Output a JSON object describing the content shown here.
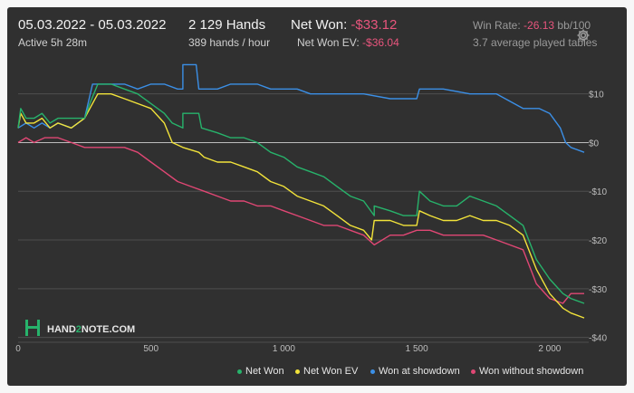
{
  "header": {
    "date_range": "05.03.2022 - 05.03.2022",
    "active": "Active 5h 28m",
    "hands": "2 129 Hands",
    "hands_per_hour": "389 hands / hour",
    "net_won_label": "Net Won:",
    "net_won_value": "-$33.12",
    "net_won_ev_label": "Net Won  EV:",
    "net_won_ev_value": "-$36.04",
    "win_rate_label": "Win Rate:",
    "win_rate_value": "-26.13",
    "win_rate_unit": "bb/100",
    "avg_tables": "3.7 average played tables",
    "gear_icon": "gear-icon"
  },
  "logo": {
    "text_a": "HAND",
    "text_b": "2",
    "text_c": "NOTE.COM"
  },
  "chart_data": {
    "type": "line",
    "xlim": [
      0,
      2130
    ],
    "ylim": [
      -41,
      17
    ],
    "x_ticks": [
      0,
      500,
      1000,
      1500,
      2000
    ],
    "x_tick_labels": [
      "0",
      "500",
      "1 000",
      "1 500",
      "2 000"
    ],
    "y_ticks": [
      10,
      0,
      -10,
      -20,
      -30,
      -40
    ],
    "y_tick_labels": [
      "$10",
      "$0",
      "-$10",
      "-$20",
      "-$30",
      "-$40"
    ],
    "grid": true,
    "legend_position": "bottom-right",
    "series": [
      {
        "name": "Net Won",
        "color": "#27b36b",
        "points": [
          [
            0,
            3
          ],
          [
            10,
            7
          ],
          [
            30,
            5
          ],
          [
            60,
            5
          ],
          [
            90,
            6
          ],
          [
            120,
            4
          ],
          [
            150,
            5
          ],
          [
            200,
            5
          ],
          [
            250,
            5
          ],
          [
            270,
            8
          ],
          [
            300,
            12
          ],
          [
            350,
            12
          ],
          [
            400,
            11
          ],
          [
            450,
            10
          ],
          [
            500,
            8
          ],
          [
            550,
            6
          ],
          [
            580,
            4
          ],
          [
            620,
            3
          ],
          [
            620,
            6
          ],
          [
            680,
            6
          ],
          [
            690,
            3
          ],
          [
            750,
            2
          ],
          [
            800,
            1
          ],
          [
            850,
            1
          ],
          [
            900,
            0
          ],
          [
            950,
            -2
          ],
          [
            1000,
            -3
          ],
          [
            1050,
            -5
          ],
          [
            1100,
            -6
          ],
          [
            1150,
            -7
          ],
          [
            1200,
            -9
          ],
          [
            1250,
            -11
          ],
          [
            1300,
            -12
          ],
          [
            1340,
            -15
          ],
          [
            1340,
            -13
          ],
          [
            1400,
            -14
          ],
          [
            1450,
            -15
          ],
          [
            1500,
            -15
          ],
          [
            1510,
            -10
          ],
          [
            1550,
            -12
          ],
          [
            1600,
            -13
          ],
          [
            1650,
            -13
          ],
          [
            1700,
            -11
          ],
          [
            1750,
            -12
          ],
          [
            1800,
            -13
          ],
          [
            1850,
            -15
          ],
          [
            1900,
            -17
          ],
          [
            1950,
            -24
          ],
          [
            2000,
            -28
          ],
          [
            2050,
            -31
          ],
          [
            2080,
            -32
          ],
          [
            2130,
            -33
          ]
        ]
      },
      {
        "name": "Net Won  EV",
        "color": "#f2e33a",
        "points": [
          [
            0,
            3
          ],
          [
            10,
            6
          ],
          [
            30,
            4
          ],
          [
            60,
            4
          ],
          [
            90,
            5
          ],
          [
            120,
            3
          ],
          [
            150,
            4
          ],
          [
            200,
            3
          ],
          [
            250,
            5
          ],
          [
            270,
            7
          ],
          [
            300,
            10
          ],
          [
            350,
            10
          ],
          [
            400,
            9
          ],
          [
            450,
            8
          ],
          [
            500,
            7
          ],
          [
            550,
            4
          ],
          [
            580,
            0
          ],
          [
            620,
            -1
          ],
          [
            680,
            -2
          ],
          [
            700,
            -3
          ],
          [
            750,
            -4
          ],
          [
            800,
            -4
          ],
          [
            850,
            -5
          ],
          [
            900,
            -6
          ],
          [
            950,
            -8
          ],
          [
            1000,
            -9
          ],
          [
            1050,
            -11
          ],
          [
            1100,
            -12
          ],
          [
            1150,
            -13
          ],
          [
            1200,
            -15
          ],
          [
            1250,
            -17
          ],
          [
            1300,
            -18
          ],
          [
            1330,
            -20
          ],
          [
            1340,
            -16
          ],
          [
            1400,
            -16
          ],
          [
            1450,
            -17
          ],
          [
            1500,
            -17
          ],
          [
            1510,
            -14
          ],
          [
            1550,
            -15
          ],
          [
            1600,
            -16
          ],
          [
            1650,
            -16
          ],
          [
            1700,
            -15
          ],
          [
            1750,
            -16
          ],
          [
            1800,
            -16
          ],
          [
            1850,
            -17
          ],
          [
            1900,
            -19
          ],
          [
            1950,
            -26
          ],
          [
            2000,
            -31
          ],
          [
            2050,
            -34
          ],
          [
            2080,
            -35
          ],
          [
            2130,
            -36
          ]
        ]
      },
      {
        "name": "Won at showdown",
        "color": "#3b8fe6",
        "points": [
          [
            0,
            3
          ],
          [
            30,
            4
          ],
          [
            60,
            3
          ],
          [
            90,
            4
          ],
          [
            120,
            3
          ],
          [
            150,
            4
          ],
          [
            200,
            3
          ],
          [
            250,
            5
          ],
          [
            280,
            12
          ],
          [
            300,
            12
          ],
          [
            400,
            12
          ],
          [
            450,
            11
          ],
          [
            500,
            12
          ],
          [
            550,
            12
          ],
          [
            600,
            11
          ],
          [
            620,
            11
          ],
          [
            620,
            16
          ],
          [
            670,
            16
          ],
          [
            680,
            11
          ],
          [
            750,
            11
          ],
          [
            800,
            12
          ],
          [
            850,
            12
          ],
          [
            900,
            12
          ],
          [
            950,
            11
          ],
          [
            1000,
            11
          ],
          [
            1050,
            11
          ],
          [
            1100,
            10
          ],
          [
            1200,
            10
          ],
          [
            1300,
            10
          ],
          [
            1400,
            9
          ],
          [
            1500,
            9
          ],
          [
            1510,
            11
          ],
          [
            1600,
            11
          ],
          [
            1700,
            10
          ],
          [
            1750,
            10
          ],
          [
            1800,
            10
          ],
          [
            1900,
            7
          ],
          [
            1960,
            7
          ],
          [
            2000,
            6
          ],
          [
            2040,
            3
          ],
          [
            2060,
            0
          ],
          [
            2080,
            -1
          ],
          [
            2130,
            -2
          ]
        ]
      },
      {
        "name": "Won without showdown",
        "color": "#e04774",
        "points": [
          [
            0,
            0
          ],
          [
            30,
            1
          ],
          [
            60,
            0
          ],
          [
            100,
            1
          ],
          [
            150,
            1
          ],
          [
            200,
            0
          ],
          [
            250,
            -1
          ],
          [
            300,
            -1
          ],
          [
            350,
            -1
          ],
          [
            400,
            -1
          ],
          [
            450,
            -2
          ],
          [
            500,
            -4
          ],
          [
            550,
            -6
          ],
          [
            600,
            -8
          ],
          [
            650,
            -9
          ],
          [
            700,
            -10
          ],
          [
            750,
            -11
          ],
          [
            800,
            -12
          ],
          [
            850,
            -12
          ],
          [
            900,
            -13
          ],
          [
            950,
            -13
          ],
          [
            1000,
            -14
          ],
          [
            1050,
            -15
          ],
          [
            1100,
            -16
          ],
          [
            1150,
            -17
          ],
          [
            1200,
            -17
          ],
          [
            1250,
            -18
          ],
          [
            1300,
            -19
          ],
          [
            1340,
            -21
          ],
          [
            1400,
            -19
          ],
          [
            1450,
            -19
          ],
          [
            1500,
            -18
          ],
          [
            1550,
            -18
          ],
          [
            1600,
            -19
          ],
          [
            1650,
            -19
          ],
          [
            1700,
            -19
          ],
          [
            1750,
            -19
          ],
          [
            1800,
            -20
          ],
          [
            1850,
            -21
          ],
          [
            1900,
            -22
          ],
          [
            1950,
            -29
          ],
          [
            2000,
            -32
          ],
          [
            2050,
            -33
          ],
          [
            2080,
            -31
          ],
          [
            2130,
            -31
          ]
        ]
      }
    ]
  }
}
